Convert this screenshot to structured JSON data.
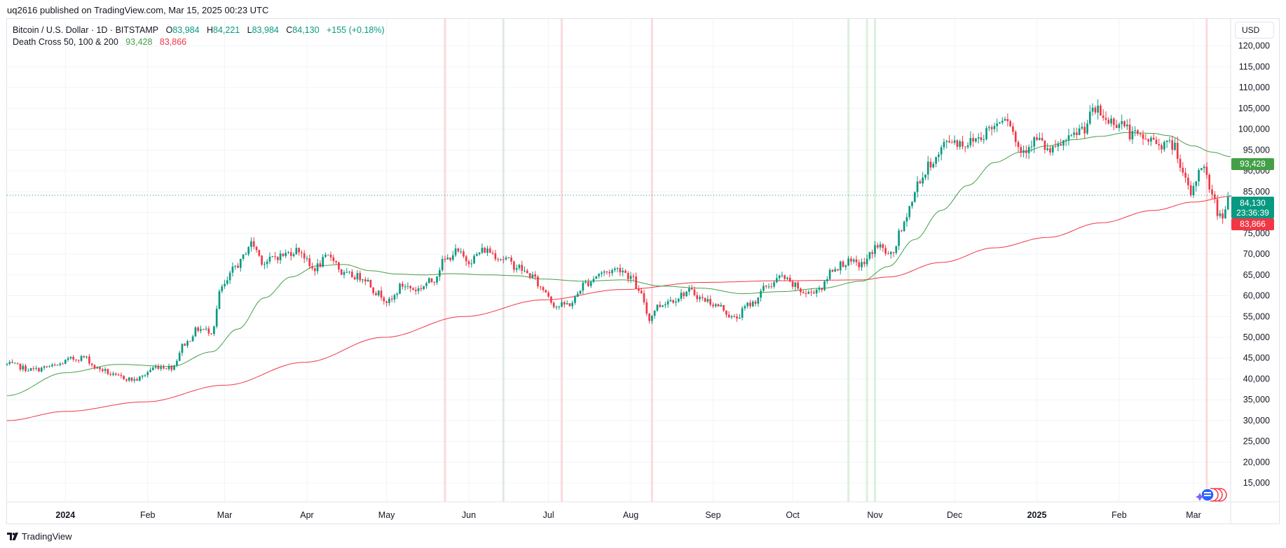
{
  "publisher_line": "uq2616 published on TradingView.com, Mar 15, 2025 00:23 UTC",
  "brand": "TradingView",
  "legend": {
    "symbol": "Bitcoin / U.S. Dollar · 1D · BITSTAMP",
    "o_label": "O",
    "o_value": "83,984",
    "h_label": "H",
    "h_value": "84,221",
    "l_label": "L",
    "l_value": "83,984",
    "c_label": "C",
    "c_value": "84,130",
    "change": "+155 (+0.18%)",
    "indicator": "Death Cross 50, 100 & 200",
    "ma50_value": "93,428",
    "ma200_value": "83,866"
  },
  "currency": "USD",
  "price_tags": {
    "ma50": "93,428",
    "last": "84,130",
    "countdown": "23:36:39",
    "ma200": "83,866"
  },
  "colors": {
    "up": "#089981",
    "down": "#f23645",
    "ma50": "#43a047",
    "ma200": "#f23645",
    "grid": "#f0f3fa",
    "signal_red": "#fde2e4",
    "signal_green": "#e2f5e4"
  },
  "chart_data": {
    "type": "candlestick",
    "title": "Bitcoin / U.S. Dollar · 1D · BITSTAMP",
    "ylabel": "USD",
    "ylim": [
      12000,
      126000
    ],
    "yticks": [
      15000,
      20000,
      25000,
      30000,
      35000,
      40000,
      45000,
      50000,
      55000,
      60000,
      65000,
      70000,
      75000,
      80000,
      85000,
      90000,
      95000,
      100000,
      105000,
      110000,
      115000,
      120000
    ],
    "ytick_labels": [
      "15,000",
      "20,000",
      "25,000",
      "30,000",
      "35,000",
      "40,000",
      "45,000",
      "50,000",
      "55,000",
      "60,000",
      "65,000",
      "70,000",
      "75,000",
      "80,000",
      "85,000",
      "90,000",
      "95,000",
      "100,000",
      "105,000",
      "110,000",
      "115,000",
      "120,000"
    ],
    "x_range_days": [
      -22,
      439
    ],
    "xticks": [
      {
        "day": 0,
        "label": "2024",
        "bold": true
      },
      {
        "day": 31,
        "label": "Feb"
      },
      {
        "day": 60,
        "label": "Mar"
      },
      {
        "day": 91,
        "label": "Apr"
      },
      {
        "day": 121,
        "label": "May"
      },
      {
        "day": 152,
        "label": "Jun"
      },
      {
        "day": 182,
        "label": "Jul"
      },
      {
        "day": 213,
        "label": "Aug"
      },
      {
        "day": 244,
        "label": "Sep"
      },
      {
        "day": 274,
        "label": "Oct"
      },
      {
        "day": 305,
        "label": "Nov"
      },
      {
        "day": 335,
        "label": "Dec"
      },
      {
        "day": 366,
        "label": "2025",
        "bold": true
      },
      {
        "day": 397,
        "label": "Feb"
      },
      {
        "day": 425,
        "label": "Mar"
      }
    ],
    "price_anchors": [
      [
        -22,
        43500
      ],
      [
        -12,
        42200
      ],
      [
        -5,
        43000
      ],
      [
        3,
        44800
      ],
      [
        7,
        45200
      ],
      [
        12,
        42500
      ],
      [
        20,
        40500
      ],
      [
        26,
        39800
      ],
      [
        35,
        43000
      ],
      [
        40,
        42800
      ],
      [
        45,
        48500
      ],
      [
        50,
        52000
      ],
      [
        55,
        51500
      ],
      [
        59,
        62000
      ],
      [
        65,
        67500
      ],
      [
        70,
        72500
      ],
      [
        75,
        68000
      ],
      [
        80,
        69500
      ],
      [
        88,
        71000
      ],
      [
        93,
        66500
      ],
      [
        100,
        69500
      ],
      [
        105,
        65000
      ],
      [
        112,
        64500
      ],
      [
        118,
        60500
      ],
      [
        122,
        58500
      ],
      [
        127,
        62500
      ],
      [
        132,
        61500
      ],
      [
        138,
        63500
      ],
      [
        143,
        68500
      ],
      [
        147,
        70500
      ],
      [
        152,
        68500
      ],
      [
        158,
        71000
      ],
      [
        165,
        69000
      ],
      [
        170,
        67000
      ],
      [
        175,
        65000
      ],
      [
        180,
        61500
      ],
      [
        185,
        57500
      ],
      [
        190,
        58000
      ],
      [
        196,
        63000
      ],
      [
        202,
        65500
      ],
      [
        209,
        66500
      ],
      [
        213,
        64500
      ],
      [
        217,
        60000
      ],
      [
        220,
        54500
      ],
      [
        223,
        57500
      ],
      [
        228,
        59000
      ],
      [
        235,
        61000
      ],
      [
        241,
        59000
      ],
      [
        246,
        57500
      ],
      [
        252,
        54500
      ],
      [
        258,
        58000
      ],
      [
        265,
        62500
      ],
      [
        270,
        64500
      ],
      [
        274,
        62500
      ],
      [
        279,
        60500
      ],
      [
        285,
        62000
      ],
      [
        289,
        66500
      ],
      [
        294,
        68000
      ],
      [
        300,
        67500
      ],
      [
        306,
        72000
      ],
      [
        311,
        69500
      ],
      [
        315,
        75500
      ],
      [
        318,
        81500
      ],
      [
        322,
        88000
      ],
      [
        327,
        92500
      ],
      [
        333,
        97500
      ],
      [
        339,
        96500
      ],
      [
        344,
        98000
      ],
      [
        349,
        100500
      ],
      [
        354,
        103500
      ],
      [
        360,
        95000
      ],
      [
        366,
        97500
      ],
      [
        371,
        94500
      ],
      [
        377,
        97000
      ],
      [
        383,
        100000
      ],
      [
        388,
        104500
      ],
      [
        393,
        102000
      ],
      [
        398,
        101500
      ],
      [
        402,
        98500
      ],
      [
        408,
        97500
      ],
      [
        413,
        96500
      ],
      [
        418,
        96000
      ],
      [
        421,
        88500
      ],
      [
        424,
        84500
      ],
      [
        428,
        91500
      ],
      [
        432,
        85000
      ],
      [
        434,
        80000
      ],
      [
        436,
        79500
      ],
      [
        438,
        83800
      ],
      [
        439,
        84130
      ]
    ],
    "ma50_anchors": [
      [
        -22,
        36000
      ],
      [
        0,
        41500
      ],
      [
        20,
        43500
      ],
      [
        40,
        43000
      ],
      [
        55,
        46500
      ],
      [
        65,
        52000
      ],
      [
        75,
        59500
      ],
      [
        85,
        64500
      ],
      [
        95,
        67200
      ],
      [
        105,
        67500
      ],
      [
        115,
        66000
      ],
      [
        125,
        65200
      ],
      [
        135,
        65000
      ],
      [
        145,
        65300
      ],
      [
        160,
        65000
      ],
      [
        170,
        64800
      ],
      [
        180,
        64000
      ],
      [
        195,
        63500
      ],
      [
        210,
        63800
      ],
      [
        225,
        62300
      ],
      [
        240,
        61800
      ],
      [
        255,
        60500
      ],
      [
        270,
        61000
      ],
      [
        285,
        61800
      ],
      [
        300,
        63500
      ],
      [
        310,
        67000
      ],
      [
        320,
        73500
      ],
      [
        330,
        80500
      ],
      [
        340,
        86500
      ],
      [
        350,
        92000
      ],
      [
        360,
        94500
      ],
      [
        370,
        96000
      ],
      [
        380,
        97500
      ],
      [
        390,
        98300
      ],
      [
        400,
        99200
      ],
      [
        410,
        99000
      ],
      [
        415,
        98500
      ],
      [
        425,
        96000
      ],
      [
        432,
        94500
      ],
      [
        439,
        93428
      ]
    ],
    "ma200_anchors": [
      [
        -22,
        30000
      ],
      [
        0,
        32200
      ],
      [
        30,
        34500
      ],
      [
        60,
        38500
      ],
      [
        90,
        44000
      ],
      [
        120,
        50000
      ],
      [
        150,
        55000
      ],
      [
        180,
        59000
      ],
      [
        210,
        61500
      ],
      [
        240,
        63200
      ],
      [
        270,
        63600
      ],
      [
        300,
        63800
      ],
      [
        310,
        64500
      ],
      [
        330,
        68000
      ],
      [
        350,
        71500
      ],
      [
        370,
        74000
      ],
      [
        390,
        77500
      ],
      [
        410,
        80500
      ],
      [
        425,
        82500
      ],
      [
        439,
        83866
      ]
    ],
    "signal_lines": [
      {
        "day": 143,
        "color": "red"
      },
      {
        "day": 165,
        "color": "grey"
      },
      {
        "day": 187,
        "color": "red"
      },
      {
        "day": 221,
        "color": "red"
      },
      {
        "day": 295,
        "color": "green"
      },
      {
        "day": 302,
        "color": "green"
      },
      {
        "day": 305,
        "color": "green"
      },
      {
        "day": 430,
        "color": "red"
      }
    ],
    "last_close": 84130,
    "last_close_label": "84,130",
    "ma50_last": 93428,
    "ma200_last": 83866
  }
}
